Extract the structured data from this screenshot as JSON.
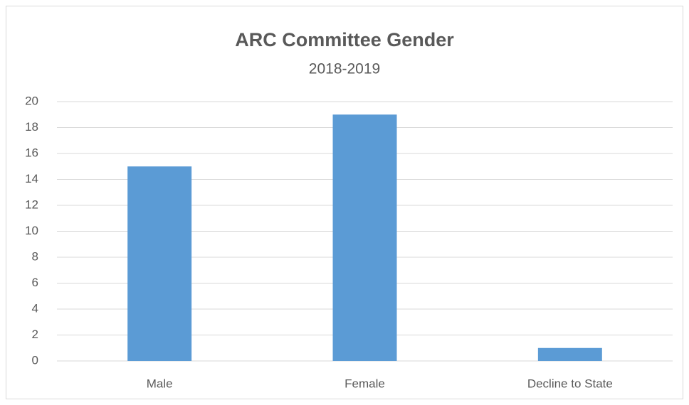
{
  "chart_data": {
    "type": "bar",
    "title": "ARC Committee Gender",
    "subtitle": "2018-2019",
    "categories": [
      "Male",
      "Female",
      "Decline to State"
    ],
    "values": [
      15,
      19,
      1
    ],
    "color": "#5b9bd5",
    "ylim": [
      0,
      20
    ],
    "yticks": [
      0,
      2,
      4,
      6,
      8,
      10,
      12,
      14,
      16,
      18,
      20
    ],
    "grid": true
  }
}
